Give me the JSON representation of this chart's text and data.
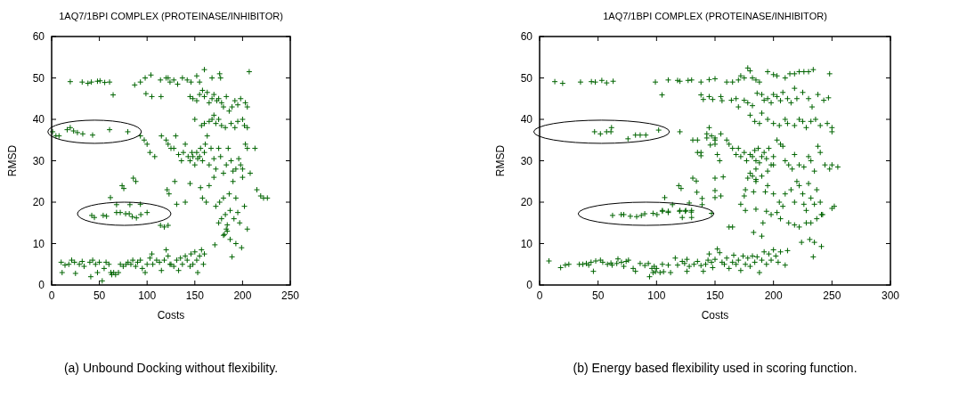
{
  "chart_data": [
    {
      "type": "scatter",
      "title": "1AQ7/1BPI COMPLEX (PROTEINASE/INHIBITOR)",
      "xlabel": "Costs",
      "ylabel": "RMSD",
      "xlim": [
        0,
        250
      ],
      "xticks": [
        0,
        50,
        100,
        150,
        200,
        250
      ],
      "ylim": [
        0,
        60
      ],
      "yticks": [
        0,
        10,
        20,
        30,
        40,
        50,
        60
      ],
      "marker": "cross",
      "grid": false,
      "annotations": [
        "(a) Unbound Docking without flexibility."
      ],
      "series": [
        {
          "color": "#006400",
          "x": [
            19.5,
            32,
            38,
            41.6,
            48,
            50.7,
            55.6,
            60.7,
            64.4,
            1,
            4.5,
            7.7,
            16.3,
            19.5,
            23,
            27,
            32.6,
            42.9,
            60.7,
            79.8,
            85.6,
            88.2,
            73.8,
            75.6,
            61.6,
            42,
            44.8,
            54,
            57.5,
            68,
            71.9,
            77.5,
            81.3,
            84.5,
            88.8,
            93.4,
            100,
            68,
            82,
            93,
            114,
            118,
            122,
            10,
            11,
            14,
            18,
            21,
            24,
            25,
            29,
            32,
            34,
            40,
            41,
            43,
            46,
            48,
            50,
            53,
            55,
            57,
            60,
            62,
            63,
            65,
            67,
            70,
            72,
            75,
            78,
            80,
            83,
            85,
            88,
            90,
            93,
            95,
            98,
            100,
            103,
            105,
            106,
            110,
            113,
            115,
            118,
            120,
            122,
            124,
            125,
            128,
            131,
            133,
            135,
            137,
            140,
            142,
            145,
            146,
            148,
            150,
            152,
            153,
            155,
            157,
            159,
            160,
            171,
            180,
            184,
            187,
            193,
            199,
            189,
            121,
            123,
            129,
            131,
            140,
            145,
            156,
            158,
            162,
            165,
            170,
            172,
            175,
            176,
            178,
            180,
            182,
            184,
            186,
            187,
            190,
            191,
            193,
            195,
            197,
            200,
            202,
            205,
            215,
            219,
            222,
            181,
            183,
            226,
            120,
            122,
            125,
            128,
            130,
            133,
            136,
            138,
            140,
            143,
            145,
            147,
            148,
            150,
            152,
            153,
            155,
            156,
            158,
            160,
            161,
            163,
            165,
            167,
            170,
            172,
            175,
            177,
            180,
            183,
            185,
            188,
            190,
            193,
            196,
            198,
            200,
            203,
            205,
            213,
            208,
            93,
            97,
            100,
            103,
            108,
            115,
            150,
            157,
            160,
            165,
            168,
            170,
            172,
            175,
            178,
            182,
            188,
            192,
            195,
            200,
            202,
            205,
            145,
            148,
            152,
            155,
            158,
            160,
            163,
            165,
            168,
            170,
            173,
            175,
            178,
            180,
            183,
            186,
            189,
            192,
            195,
            198,
            203,
            205,
            122,
            124,
            128,
            132,
            137,
            142,
            146,
            152,
            155,
            160,
            168,
            176,
            177,
            207,
            87,
            93,
            98,
            104,
            114,
            120,
            98.8,
            105,
            114.6
          ],
          "values": [
            49.1,
            49,
            48.7,
            49,
            49.2,
            49.3,
            48.9,
            49,
            45.9,
            37,
            36,
            36,
            37.5,
            38,
            37.2,
            36.8,
            36.5,
            36.2,
            37.5,
            37,
            25.8,
            25,
            24,
            23.3,
            21.1,
            16.8,
            16.3,
            16.8,
            16.6,
            17.5,
            17.5,
            17.2,
            17.2,
            16.5,
            16.2,
            17,
            17.5,
            19.4,
            19.4,
            19.5,
            14.4,
            14,
            14.4,
            5.5,
            3,
            4.8,
            5,
            6,
            5.5,
            2.8,
            5,
            5.7,
            4.5,
            5.5,
            2,
            6,
            5,
            3,
            5.5,
            1,
            4,
            5.5,
            5,
            3,
            2.5,
            3,
            2.5,
            3,
            5,
            4.5,
            5,
            5.5,
            5,
            6,
            4.5,
            5.5,
            6,
            4,
            3,
            5,
            6.5,
            7.5,
            5,
            6,
            5.5,
            3.5,
            6,
            8.5,
            7,
            5,
            5,
            4.5,
            6,
            3.5,
            6.5,
            5,
            7,
            6,
            4.5,
            7.5,
            5,
            8,
            6,
            3,
            7,
            8.5,
            5,
            7.5,
            9.7,
            12,
            13,
            11,
            10,
            9,
            6.8,
            23,
            22,
            25,
            19.5,
            20,
            24.5,
            23.5,
            21,
            20,
            24,
            26,
            19,
            15,
            20,
            16,
            21,
            17,
            14.5,
            22,
            18,
            25,
            16,
            21,
            17.5,
            15,
            26,
            19,
            13.5,
            23,
            21.5,
            21,
            12.2,
            13.5,
            21,
            35,
            34,
            33,
            33,
            36,
            31.5,
            30,
            32,
            34,
            31,
            30,
            32,
            31,
            29,
            32,
            30.5,
            31,
            33,
            30,
            32,
            34,
            36,
            29,
            33,
            30.5,
            28,
            33,
            31,
            27,
            29,
            33,
            30,
            27.5,
            28,
            30.5,
            29,
            28,
            34,
            33,
            33,
            27,
            36,
            35,
            34,
            32,
            31,
            36,
            40,
            38.5,
            39,
            39.5,
            40,
            41,
            39,
            40,
            38.5,
            38,
            39,
            38,
            39.5,
            40,
            38.5,
            38,
            45.5,
            45,
            44.5,
            46,
            47,
            45.5,
            46.5,
            44,
            45,
            46,
            44.5,
            45,
            44,
            43,
            45.5,
            42,
            43,
            44.5,
            43.5,
            45,
            44,
            43,
            50,
            49,
            49.5,
            48.5,
            50,
            49.5,
            49,
            50.5,
            49,
            52,
            50,
            51,
            50,
            51.5,
            48.3,
            49,
            50,
            50.7,
            49.5,
            50,
            46.2,
            45.5,
            45.5
          ]
        }
      ]
    },
    {
      "type": "scatter",
      "title": "1AQ7/1BPI COMPLEX (PROTEINASE/INHIBITOR)",
      "xlabel": "Costs",
      "ylabel": "RMSD",
      "xlim": [
        0,
        300
      ],
      "xticks": [
        0,
        50,
        100,
        150,
        200,
        250,
        300
      ],
      "ylim": [
        0,
        60
      ],
      "yticks": [
        0,
        10,
        20,
        30,
        40,
        50,
        60
      ],
      "marker": "cross",
      "grid": false,
      "annotations": [
        "(b) Energy based flexibility used in scoring function."
      ],
      "series": [
        {
          "color": "#006400",
          "x": [
            13,
            19.7,
            35,
            44.3,
            47.6,
            53.2,
            57.3,
            62.9,
            99,
            104.7,
            110,
            118,
            120,
            127,
            130,
            138,
            145,
            150,
            138,
            145,
            155,
            47,
            52,
            57.3,
            61,
            61.5,
            75.6,
            82,
            86,
            90.8,
            101.8,
            120,
            131,
            135,
            138,
            143,
            145,
            147,
            150,
            150,
            152,
            154,
            62.4,
            69.8,
            72,
            77.6,
            83,
            87,
            89.9,
            97,
            100.4,
            105,
            110,
            119.7,
            124.6,
            129.7,
            147,
            105,
            110,
            120,
            125,
            130,
            122,
            130,
            107,
            113.6,
            128,
            119,
            121,
            131,
            134,
            134.5,
            139,
            139,
            150,
            157,
            150,
            150,
            155,
            8,
            18,
            22,
            25,
            34,
            37,
            40,
            42,
            44,
            46,
            48,
            52,
            54,
            58,
            61,
            62,
            66,
            67,
            70,
            72,
            74,
            76,
            80,
            82,
            86,
            90,
            93,
            94,
            96,
            97,
            98,
            99,
            100,
            103,
            105,
            106,
            110,
            112,
            116,
            118,
            122,
            124,
            126,
            126,
            128,
            132,
            135,
            138,
            140,
            142,
            144,
            145,
            147,
            148,
            150,
            152,
            154,
            156,
            158,
            160,
            162,
            165,
            166,
            168,
            170,
            172,
            174,
            176,
            178,
            180,
            182,
            184,
            186,
            188,
            190,
            192,
            194,
            196,
            198,
            200,
            202,
            204,
            206,
            210,
            212,
            162,
            165,
            183,
            190,
            224,
            231,
            235,
            234,
            241,
            178,
            182,
            185,
            190,
            175,
            176,
            183,
            185,
            193,
            195,
            200,
            205,
            208,
            210,
            215,
            218,
            220,
            222,
            225,
            226,
            228,
            230,
            232,
            235,
            237,
            240,
            242,
            198,
            203,
            206,
            213,
            218,
            222,
            228,
            232,
            237,
            241,
            250,
            252,
            172,
            176,
            185,
            191,
            194,
            143,
            146,
            150,
            155,
            160,
            162,
            165,
            168,
            170,
            172,
            175,
            177,
            180,
            182,
            184,
            185,
            187,
            188,
            190,
            192,
            194,
            196,
            198,
            200,
            203,
            206,
            208,
            210,
            213,
            216,
            218,
            222,
            226,
            230,
            232,
            235,
            238,
            240,
            244,
            248,
            250,
            255,
            180,
            185,
            195,
            200,
            135,
            138,
            180,
            184,
            188,
            190,
            195,
            200,
            205,
            210,
            212,
            218,
            222,
            225,
            228,
            232,
            236,
            240,
            246,
            250,
            250,
            140,
            148,
            156,
            164,
            168,
            170,
            175,
            178,
            182,
            186,
            190,
            192,
            195,
            198,
            200,
            203,
            206,
            208,
            212,
            215,
            220,
            225,
            230,
            233,
            238,
            243,
            247,
            218,
            160,
            165,
            170,
            172,
            175,
            178,
            180,
            182,
            185,
            188,
            195,
            200,
            203,
            210,
            214,
            218,
            222,
            226,
            230,
            234,
            248
          ],
          "values": [
            49.1,
            48.7,
            49,
            49.1,
            49,
            49.4,
            48.8,
            49.2,
            49,
            45.9,
            49.5,
            49.4,
            49.2,
            49.4,
            49.5,
            49,
            49.6,
            49.8,
            45.9,
            45.5,
            45.5,
            37,
            36.5,
            37,
            37,
            38,
            35.3,
            36.2,
            36.2,
            36.2,
            37.4,
            37,
            35,
            35,
            32,
            36.5,
            38,
            36,
            35.5,
            34,
            31.5,
            30,
            16.8,
            17,
            17,
            16.6,
            16.5,
            16.8,
            17.2,
            17.3,
            17,
            17.8,
            17.5,
            17.8,
            17.8,
            17.6,
            17.3,
            18,
            17.8,
            18,
            18,
            18,
            16.3,
            16.3,
            21.1,
            19.4,
            19.8,
            24,
            23.3,
            25.8,
            25.1,
            22.4,
            20.9,
            19.4,
            25.8,
            26.1,
            22.8,
            21.1,
            21.5,
            5.8,
            4.2,
            4.8,
            5,
            5,
            5,
            5.2,
            4.8,
            5.5,
            3.3,
            5.8,
            6,
            5.5,
            5,
            5.3,
            4.8,
            5.2,
            6.3,
            5.5,
            4.5,
            5.7,
            6,
            4,
            3.3,
            5.2,
            4.7,
            5.2,
            2,
            4,
            3,
            4.5,
            3.2,
            4,
            3,
            5,
            3.2,
            4.8,
            3,
            6.5,
            4.8,
            5.7,
            5.2,
            6.2,
            3.3,
            4.5,
            5,
            5.7,
            4.7,
            3.3,
            5,
            6,
            7.5,
            5.5,
            4.2,
            6.2,
            8.7,
            7.8,
            5.5,
            5,
            6.5,
            4,
            5.5,
            7.2,
            5,
            6,
            3.5,
            7,
            5,
            6.5,
            4.5,
            7,
            5.5,
            6.8,
            3,
            6,
            8,
            5,
            7.5,
            6,
            8.5,
            7,
            5.5,
            8,
            4.8,
            8.3,
            14,
            14,
            12.7,
            11.8,
            10.3,
            11,
            10.3,
            6.8,
            9.3,
            25.8,
            26.3,
            25.5,
            26.3,
            21.5,
            23,
            22.5,
            25,
            22.5,
            24,
            22,
            20,
            19,
            22,
            23,
            20,
            25,
            24,
            22,
            19.5,
            18,
            24.5,
            21,
            19.5,
            23,
            20,
            17,
            17,
            17.5,
            16,
            15,
            14.5,
            14,
            15,
            15,
            16,
            17,
            18.5,
            19,
            19.5,
            18,
            18.3,
            15,
            17.8,
            35.5,
            33.8,
            35,
            36.5,
            35,
            34,
            33,
            31.5,
            33,
            31,
            32,
            30,
            31.5,
            31,
            32.5,
            30,
            33,
            29.5,
            31,
            32,
            30.5,
            33,
            29,
            31,
            35,
            34,
            33.5,
            30,
            29,
            28,
            31.5,
            29,
            28.5,
            31,
            30,
            27.5,
            33.5,
            32,
            29,
            28,
            29,
            28.5,
            27,
            28,
            27.5,
            29,
            32,
            31.2,
            41,
            39.5,
            39,
            41.5,
            40,
            39,
            38.5,
            40,
            39,
            38.5,
            40,
            39.5,
            38,
            39.5,
            40,
            38.5,
            39,
            38,
            37,
            44.8,
            44.8,
            44.5,
            44.6,
            45,
            43,
            44.6,
            44,
            43.3,
            46.3,
            46,
            44.6,
            45,
            44,
            46,
            45.5,
            44.5,
            46.5,
            45,
            44,
            45,
            46.5,
            45,
            43,
            46,
            44.6,
            45.2,
            47.5,
            49,
            49,
            49.5,
            50.5,
            50,
            52.4,
            51.7,
            50,
            49.5,
            49,
            51.5,
            50.8,
            50.5,
            50,
            51,
            51,
            51.5,
            51.5,
            51.5,
            52,
            51
          ]
        }
      ]
    }
  ]
}
